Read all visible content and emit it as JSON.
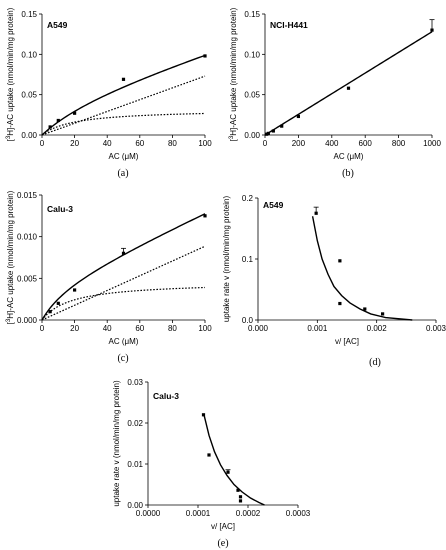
{
  "chart_data": [
    {
      "id": "a",
      "type": "scatter",
      "panel_label": "A549",
      "caption": "(a)",
      "xlabel": "AC (μM)",
      "ylabel_prefix": "[",
      "ylabel_sup": "3",
      "ylabel_rest": "H]-AC uptake (nmol/min/mg protein)",
      "xlim": [
        0,
        100
      ],
      "ylim": [
        0,
        0.15
      ],
      "xticks": [
        0,
        20,
        40,
        60,
        80,
        100
      ],
      "xtick_labels": [
        "0",
        "20",
        "40",
        "60",
        "80",
        "100"
      ],
      "yticks": [
        0,
        0.05,
        0.1,
        0.15
      ],
      "ytick_labels": [
        "0.00",
        "0.05",
        "0.10",
        "0.15"
      ],
      "points": [
        {
          "x": 5,
          "y": 0.01
        },
        {
          "x": 10,
          "y": 0.018
        },
        {
          "x": 20,
          "y": 0.027
        },
        {
          "x": 50,
          "y": 0.069
        },
        {
          "x": 100,
          "y": 0.098
        }
      ],
      "curves": [
        {
          "style": "solid",
          "model": "mm_linear",
          "vmax": 0.05,
          "km": 40,
          "kd": 0.00063
        },
        {
          "style": "dotted",
          "model": "linear",
          "k": 0.00073
        },
        {
          "style": "dotted",
          "model": "mm",
          "vmax": 0.032,
          "km": 20
        }
      ]
    },
    {
      "id": "b",
      "type": "scatter",
      "panel_label": "NCI-H441",
      "caption": "(b)",
      "xlabel": "AC (μM)",
      "ylabel_prefix": "[",
      "ylabel_sup": "3",
      "ylabel_rest": "H]-AC uptake (nmol/min/mg protein)",
      "xlim": [
        0,
        1000
      ],
      "ylim": [
        0,
        0.15
      ],
      "xticks": [
        0,
        200,
        400,
        600,
        800,
        1000
      ],
      "xtick_labels": [
        "0",
        "200",
        "400",
        "600",
        "800",
        "1000"
      ],
      "yticks": [
        0,
        0.05,
        0.1,
        0.15
      ],
      "ytick_labels": [
        "0.00",
        "0.05",
        "0.10",
        "0.15"
      ],
      "points": [
        {
          "x": 10,
          "y": 0.001
        },
        {
          "x": 20,
          "y": 0.002
        },
        {
          "x": 50,
          "y": 0.005
        },
        {
          "x": 100,
          "y": 0.011
        },
        {
          "x": 200,
          "y": 0.023
        },
        {
          "x": 500,
          "y": 0.058
        },
        {
          "x": 1000,
          "y": 0.13,
          "err": 0.013
        }
      ],
      "curves": [
        {
          "style": "solid",
          "model": "linear",
          "k": 0.000128
        }
      ]
    },
    {
      "id": "c",
      "type": "scatter",
      "panel_label": "Calu-3",
      "caption": "(c)",
      "xlabel": "AC (μM)",
      "ylabel_prefix": "[",
      "ylabel_sup": "3",
      "ylabel_rest": "H]-AC uptake (nmol/min/mg protein)",
      "xlim": [
        0,
        100
      ],
      "ylim": [
        0,
        0.015
      ],
      "xticks": [
        0,
        20,
        40,
        60,
        80,
        100
      ],
      "xtick_labels": [
        "0",
        "20",
        "40",
        "60",
        "80",
        "100"
      ],
      "yticks": [
        0,
        0.005,
        0.01,
        0.015
      ],
      "ytick_labels": [
        "0.000",
        "0.005",
        "0.010",
        "0.015"
      ],
      "points": [
        {
          "x": 5,
          "y": 0.001
        },
        {
          "x": 10,
          "y": 0.002
        },
        {
          "x": 20,
          "y": 0.0036
        },
        {
          "x": 50,
          "y": 0.008,
          "err": 0.0006
        },
        {
          "x": 100,
          "y": 0.0125
        }
      ],
      "curves": [
        {
          "style": "solid",
          "model": "mm_linear",
          "vmax": 0.0046,
          "km": 18,
          "kd": 8.85e-05
        },
        {
          "style": "dotted",
          "model": "linear",
          "k": 8.85e-05
        },
        {
          "style": "dotted",
          "model": "mm",
          "vmax": 0.0046,
          "km": 18
        }
      ]
    },
    {
      "id": "d",
      "type": "scatter",
      "panel_label": "A549",
      "caption": "(d)",
      "xlabel": "v/ [AC]",
      "ylabel": "uptake rate v (nmol/min/mg protein)",
      "xlim": [
        0,
        0.003
      ],
      "ylim": [
        0,
        0.2
      ],
      "xticks": [
        0,
        0.001,
        0.002,
        0.003
      ],
      "xtick_labels": [
        "0.000",
        "0.001",
        "0.002",
        "0.003"
      ],
      "yticks": [
        0,
        0.1,
        0.2
      ],
      "ytick_labels": [
        "0.0",
        "0.1",
        "0.2"
      ],
      "points": [
        {
          "x": 0.00098,
          "y": 0.175,
          "err": 0.01
        },
        {
          "x": 0.00138,
          "y": 0.097
        },
        {
          "x": 0.00138,
          "y": 0.027
        },
        {
          "x": 0.0018,
          "y": 0.018
        },
        {
          "x": 0.0021,
          "y": 0.01
        }
      ],
      "curves": [
        {
          "style": "solid",
          "model": "eadie",
          "v": [
            0.17,
            0.13,
            0.1,
            0.075,
            0.055,
            0.04,
            0.028,
            0.018,
            0.01,
            0.004,
            0.0
          ],
          "x": [
            0.00092,
            0.001,
            0.00108,
            0.00118,
            0.00128,
            0.00141,
            0.00155,
            0.00172,
            0.0019,
            0.00215,
            0.0026
          ]
        }
      ]
    },
    {
      "id": "e",
      "type": "scatter",
      "panel_label": "Calu-3",
      "caption": "(e)",
      "xlabel": "v/ [AC]",
      "ylabel": "uptake rate v (nmol/min/mg protein)",
      "xlim": [
        0,
        0.0003
      ],
      "ylim": [
        0,
        0.03
      ],
      "xticks": [
        0,
        0.0001,
        0.0002,
        0.0003
      ],
      "xtick_labels": [
        "0.0000",
        "0.0001",
        "0.0002",
        "0.0003"
      ],
      "yticks": [
        0,
        0.01,
        0.02,
        0.03
      ],
      "ytick_labels": [
        "0.00",
        "0.01",
        "0.02",
        "0.03"
      ],
      "points": [
        {
          "x": 0.000111,
          "y": 0.022
        },
        {
          "x": 0.000122,
          "y": 0.0122
        },
        {
          "x": 0.00016,
          "y": 0.008,
          "err": 0.0006
        },
        {
          "x": 0.00018,
          "y": 0.0036
        },
        {
          "x": 0.000185,
          "y": 0.002
        },
        {
          "x": 0.000185,
          "y": 0.001
        }
      ],
      "curves": [
        {
          "style": "solid",
          "model": "eadie",
          "v": [
            0.022,
            0.017,
            0.013,
            0.0098,
            0.0072,
            0.005,
            0.0032,
            0.0017,
            0.0006,
            0.0
          ],
          "x": [
            0.000112,
            0.000122,
            0.000133,
            0.000145,
            0.000158,
            0.000172,
            0.000188,
            0.000205,
            0.000222,
            0.000233
          ]
        }
      ]
    }
  ]
}
